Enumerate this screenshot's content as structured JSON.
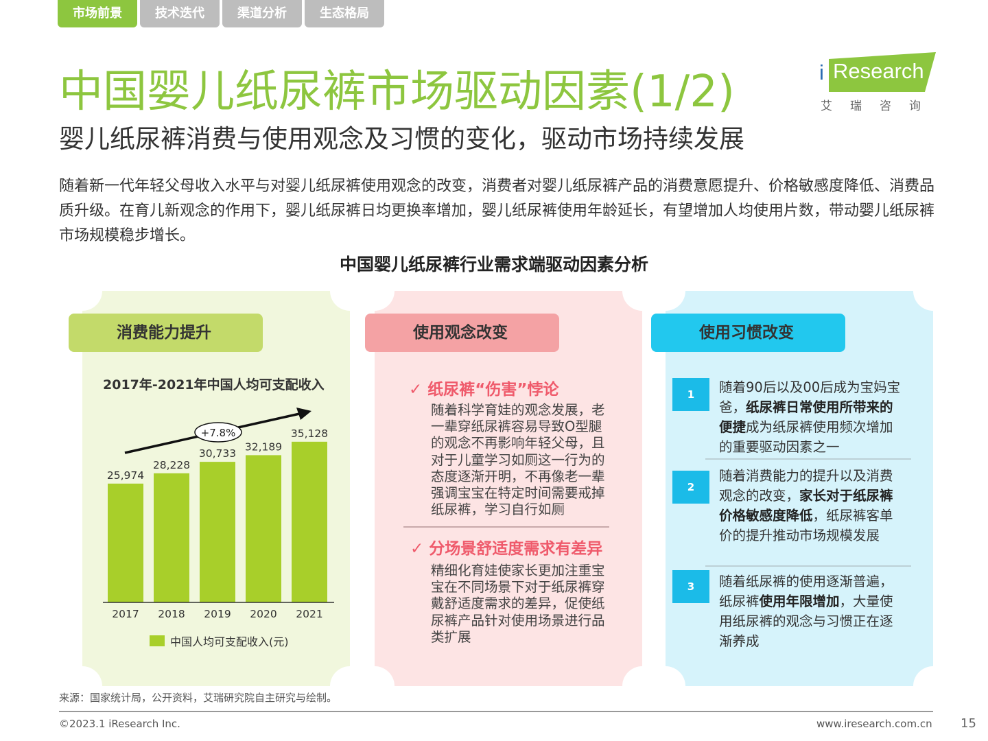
{
  "tabs": [
    "市场前景",
    "技术迭代",
    "渠道分析",
    "生态格局"
  ],
  "header": {
    "title": "中国婴儿纸尿裤市场驱动因素(1/2)",
    "subtitle": "婴儿纸尿裤消费与使用观念及习惯的变化，驱动市场持续发展"
  },
  "logo": {
    "text": "Research",
    "i": "i",
    "cn": "艾瑞咨询"
  },
  "intro": "随着新一代年轻父母收入水平与对婴儿纸尿裤使用观念的改变，消费者对婴儿纸尿裤产品的消费意愿提升、价格敏感度降低、消费品质升级。在育儿新观念的作用下，婴儿纸尿裤日均更换率增加，婴儿纸尿裤使用年龄延长，有望增加人均使用片数，带动婴儿纸尿裤市场规模稳步增长。",
  "section_title": "中国婴儿纸尿裤行业需求端驱动因素分析",
  "panels": {
    "p1": {
      "head": "消费能力提升"
    },
    "p2": {
      "head": "使用观念改变",
      "check1_title": "✓ 纸尿裤“伤害”悖论",
      "check1_text": "随着科学育娃的观念发展，老一辈穿纸尿裤容易导致O型腿的观念不再影响年轻父母，且对于儿童学习如厕这一行为的态度逐渐开明，不再像老一辈强调宝宝在特定时间需要戒掉纸尿裤，学习自行如厕",
      "check2_title": "✓ 分场景舒适度需求有差异",
      "check2_text": "精细化育娃使家长更加注重宝宝在不同场景下对于纸尿裤穿戴舒适度需求的差异，促使纸尿裤产品针对使用场景进行品类扩展"
    },
    "p3": {
      "head": "使用习惯改变",
      "items": [
        {
          "num": "1",
          "a": "随着90后以及00后成为宝妈宝爸，",
          "b": "纸尿裤日常使用所带来的便捷",
          "c": "成为纸尿裤使用频次增加的重要驱动因素之一"
        },
        {
          "num": "2",
          "a": "随着消费能力的提升以及消费观念的改变，",
          "b": "家长对于纸尿裤价格敏感度降低",
          "c": "，纸尿裤客单价的提升推动市场规模发展"
        },
        {
          "num": "3",
          "a": "随着纸尿裤的使用逐渐普遍，纸尿裤",
          "b": "使用年限增加",
          "c": "，大量使用纸尿裤的观念与习惯正在逐渐养成"
        }
      ]
    }
  },
  "chart_data": {
    "type": "bar",
    "title": "2017年-2021年中国人均可支配收入",
    "categories": [
      "2017",
      "2018",
      "2019",
      "2020",
      "2021"
    ],
    "series": [
      {
        "name": "中国人均可支配收入(元)",
        "values": [
          25974,
          28228,
          30733,
          32189,
          35128
        ]
      }
    ],
    "value_labels": [
      "25,974",
      "28,228",
      "30,733",
      "32,189",
      "35,128"
    ],
    "growth_label": "+7.8%",
    "ylim": [
      0,
      36000
    ],
    "color": "#a8cf2a",
    "legend_position": "bottom"
  },
  "footer": {
    "source": "来源：国家统计局，公开资料，艾瑞研究院自主研究与绘制。",
    "copyright": "©2023.1 iResearch Inc.",
    "url": "www.iresearch.com.cn",
    "page": "15"
  }
}
